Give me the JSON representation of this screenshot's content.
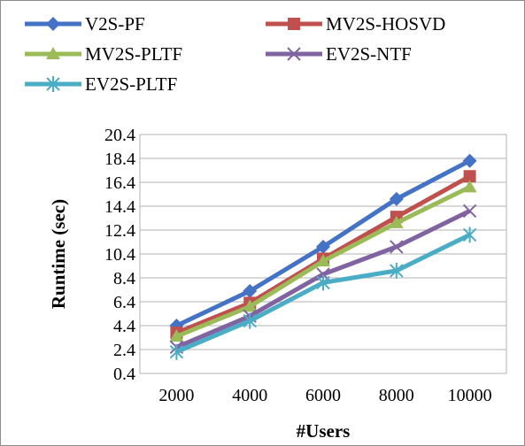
{
  "chart_data": {
    "type": "line",
    "title": "",
    "xlabel": "#Users",
    "ylabel": "Runtime (sec)",
    "categories": [
      "2000",
      "4000",
      "6000",
      "8000",
      "10000"
    ],
    "y_ticks": [
      "0.4",
      "2.4",
      "4.4",
      "6.4",
      "8.4",
      "10.4",
      "12.4",
      "14.4",
      "16.4",
      "18.4",
      "20.4"
    ],
    "ylim": [
      0.4,
      20.4
    ],
    "grid": true,
    "legend_position": "top",
    "series": [
      {
        "name": "V2S-PF",
        "values": [
          4.4,
          7.3,
          11.0,
          15.0,
          18.2
        ],
        "color": "#4472C4",
        "marker": "diamond"
      },
      {
        "name": "MV2S-HOSVD",
        "values": [
          3.8,
          6.3,
          10.0,
          13.5,
          16.9
        ],
        "color": "#C0504D",
        "marker": "square"
      },
      {
        "name": "MV2S-PLTF",
        "values": [
          3.5,
          6.0,
          9.8,
          13.0,
          16.0
        ],
        "color": "#9BBB59",
        "marker": "triangle"
      },
      {
        "name": "EV2S-NTF",
        "values": [
          2.6,
          5.2,
          8.7,
          11.0,
          14.0
        ],
        "color": "#8064A2",
        "marker": "x"
      },
      {
        "name": "EV2S-PLTF",
        "values": [
          2.2,
          4.8,
          8.0,
          9.0,
          12.0
        ],
        "color": "#4BACC6",
        "marker": "star"
      }
    ]
  }
}
